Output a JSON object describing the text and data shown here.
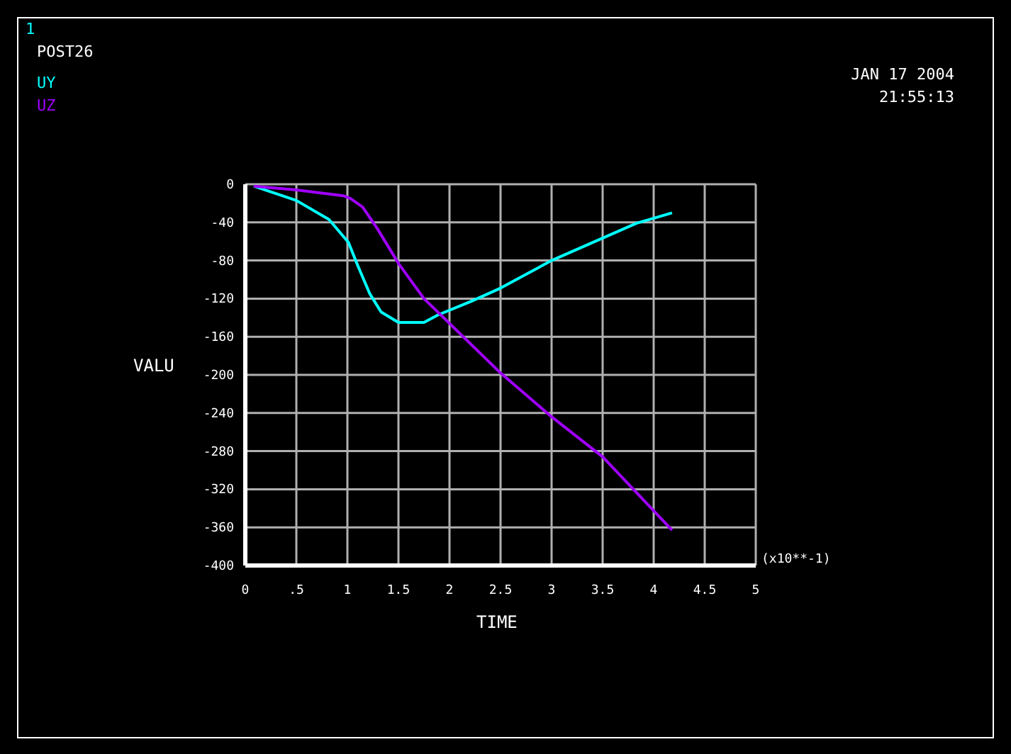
{
  "chart_data": {
    "type": "line",
    "xlabel": "TIME",
    "ylabel": "VALU",
    "annotations": [
      "1",
      "POST26",
      "JAN 17 2004",
      "21:55:13",
      "(x10**-1)"
    ],
    "xlim": [
      0,
      5
    ],
    "xticks": [
      0,
      {
        "value": 0.5,
        "label": ".5"
      },
      1,
      1.5,
      2,
      2.5,
      3,
      3.5,
      4,
      4.5,
      5
    ],
    "ylim": [
      -400,
      0
    ],
    "yticks": [
      -400,
      -360,
      -320,
      -280,
      -240,
      -200,
      -160,
      -120,
      -80,
      -40,
      0
    ],
    "grid": true,
    "legend": "top left",
    "marker": "none",
    "line_style": "solid",
    "series": [
      {
        "name": "UY",
        "color": "#00ffff",
        "x": [
          0.083,
          0.5,
          0.82,
          1.01,
          1.1,
          1.22,
          1.33,
          1.5,
          1.75,
          1.89,
          2.21,
          2.5,
          3.0,
          3.32,
          3.83,
          4.18
        ],
        "values": [
          -2,
          -17,
          -37,
          -61,
          -85,
          -115,
          -134,
          -145,
          -145,
          -137,
          -123,
          -109,
          -80,
          -65,
          -41,
          -30
        ]
      },
      {
        "name": "UZ",
        "color": "#a000ff",
        "x": [
          0.083,
          0.5,
          0.96,
          1.03,
          1.15,
          1.29,
          1.5,
          1.75,
          2.0,
          2.5,
          3.0,
          3.5,
          4.18
        ],
        "values": [
          -2,
          -6,
          -12,
          -15,
          -24,
          -46,
          -83,
          -120,
          -146,
          -198,
          -244,
          -286,
          -363
        ]
      }
    ]
  }
}
